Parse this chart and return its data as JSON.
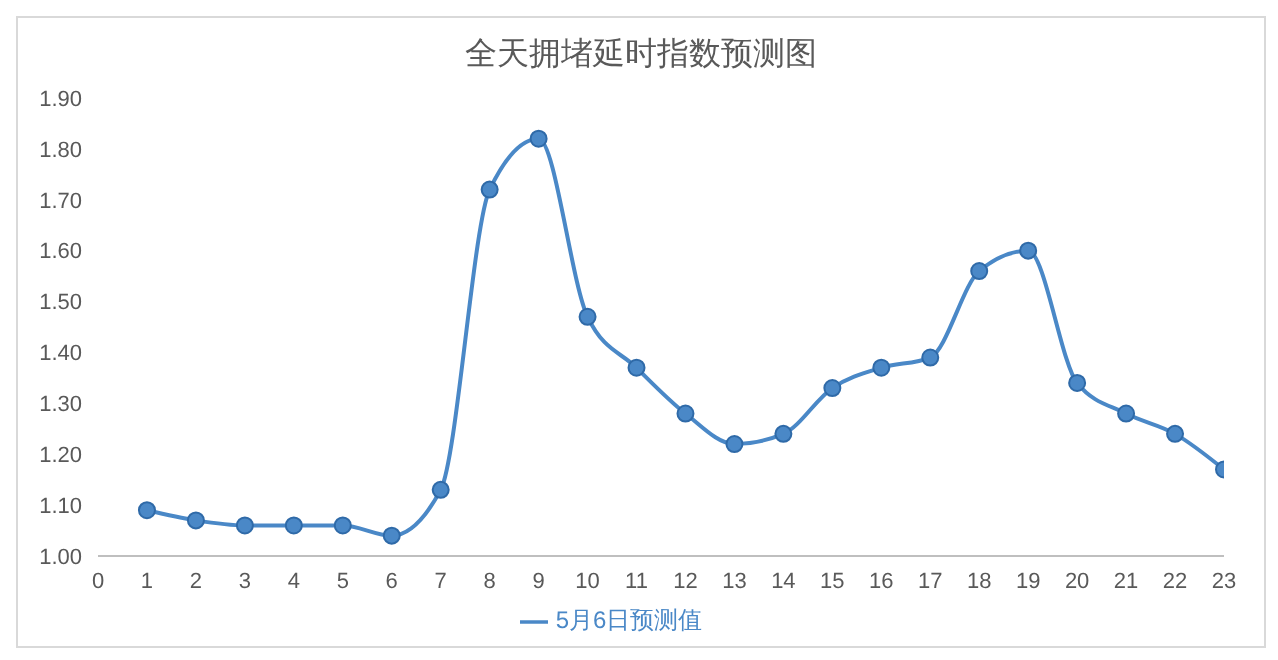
{
  "chart_data": {
    "type": "line",
    "title": "全天拥堵延时指数预测图",
    "x": [
      1,
      2,
      3,
      4,
      5,
      6,
      7,
      8,
      9,
      10,
      11,
      12,
      13,
      14,
      15,
      16,
      17,
      18,
      19,
      20,
      21,
      22,
      23
    ],
    "series": [
      {
        "name": "5月6日预测值",
        "color": "#4a88c7",
        "values": [
          1.09,
          1.07,
          1.06,
          1.06,
          1.06,
          1.04,
          1.13,
          1.72,
          1.82,
          1.47,
          1.37,
          1.28,
          1.22,
          1.24,
          1.33,
          1.37,
          1.39,
          1.56,
          1.6,
          1.34,
          1.28,
          1.24,
          1.17
        ]
      }
    ],
    "xlim": [
      0,
      23
    ],
    "xticks": [
      0,
      1,
      2,
      3,
      4,
      5,
      6,
      7,
      8,
      9,
      10,
      11,
      12,
      13,
      14,
      15,
      16,
      17,
      18,
      19,
      20,
      21,
      22,
      23
    ],
    "ylim": [
      1.0,
      1.9
    ],
    "yticks": [
      {
        "value": 1.0,
        "label": "1.00"
      },
      {
        "value": 1.1,
        "label": "1.10"
      },
      {
        "value": 1.2,
        "label": "1.20"
      },
      {
        "value": 1.3,
        "label": "1.30"
      },
      {
        "value": 1.4,
        "label": "1.40"
      },
      {
        "value": 1.5,
        "label": "1.50"
      },
      {
        "value": 1.6,
        "label": "1.60"
      },
      {
        "value": 1.7,
        "label": "1.70"
      },
      {
        "value": 1.8,
        "label": "1.80"
      },
      {
        "value": 1.9,
        "label": "1.90"
      }
    ],
    "grid": false,
    "legend": "bottom",
    "marker": "circle",
    "line_style": "solid"
  }
}
